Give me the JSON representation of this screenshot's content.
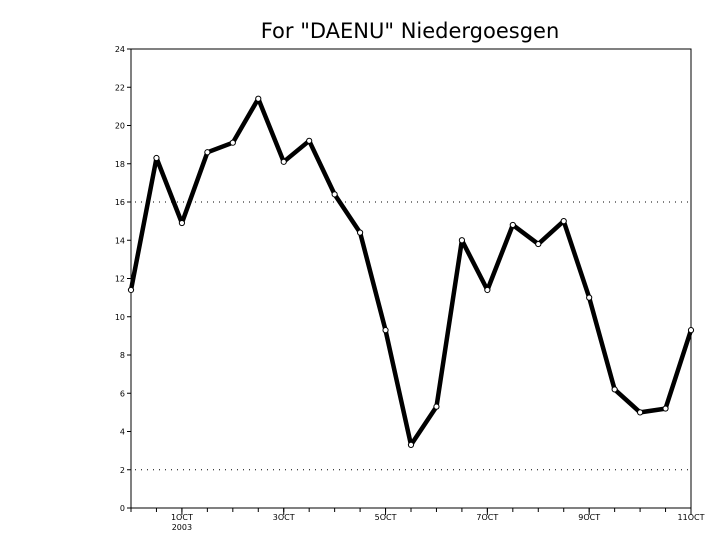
{
  "chart_data": {
    "type": "line",
    "title": "For \"DAENU\" Niedergoesgen",
    "xlabel": "",
    "ylabel": "",
    "ylim": [
      0,
      24
    ],
    "yticks": [
      0,
      2,
      4,
      6,
      8,
      10,
      12,
      14,
      16,
      18,
      20,
      22,
      24
    ],
    "xlim": [
      0,
      22
    ],
    "xticks": [
      {
        "pos": 2,
        "label": "1OCT",
        "sublabel": "2003"
      },
      {
        "pos": 6,
        "label": "3OCT"
      },
      {
        "pos": 10,
        "label": "5OCT"
      },
      {
        "pos": 14,
        "label": "7OCT"
      },
      {
        "pos": 18,
        "label": "9OCT"
      },
      {
        "pos": 22,
        "label": "11OCT"
      }
    ],
    "grid": "dotted horizontal lines at 2 and 16",
    "dotted_reference_lines": [
      2,
      16
    ],
    "series": [
      {
        "color": "#000000",
        "x": [
          0,
          1,
          2,
          3,
          4,
          5,
          6,
          7,
          8,
          9,
          10,
          11,
          12,
          13,
          14,
          15,
          16,
          17,
          18,
          19,
          20,
          21,
          22
        ],
        "values": [
          11.4,
          18.3,
          14.9,
          18.6,
          19.1,
          21.4,
          18.1,
          19.2,
          16.4,
          14.4,
          9.3,
          3.3,
          5.3,
          14.0,
          11.4,
          14.8,
          13.8,
          15.0,
          11.0,
          6.2,
          5.0,
          5.2,
          9.3
        ]
      }
    ]
  }
}
